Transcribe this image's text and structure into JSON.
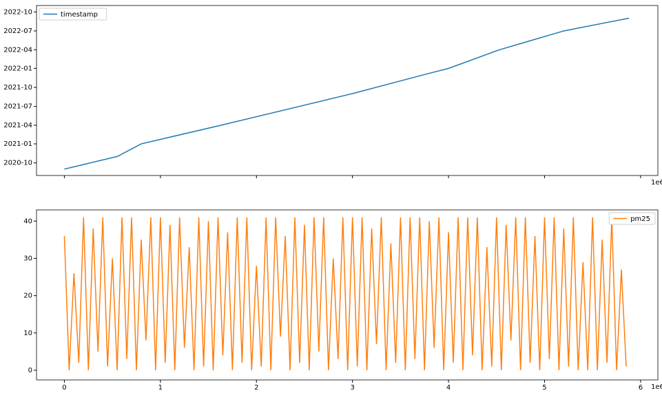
{
  "chart_data": [
    {
      "type": "line",
      "offset_label": "1e6",
      "legend": "upper left",
      "show_xtick_labels": false,
      "x": [
        0,
        0.55,
        0.8,
        1.63,
        3.0,
        3.74,
        4.0,
        4.53,
        5.2,
        5.88
      ],
      "series": [
        {
          "name": "timestamp",
          "color": "#1f77b4",
          "values": [
            "2020-09",
            "2020-11",
            "2021-01",
            "2021-04",
            "2021-09",
            "2021-12",
            "2022-01",
            "2022-04",
            "2022-07",
            "2022-09"
          ]
        }
      ],
      "xlim": [
        -0.29,
        6.18
      ],
      "xticks": [
        0,
        1,
        2,
        3,
        4,
        5,
        6
      ],
      "ylim": [
        "2020-08",
        "2022-11"
      ],
      "yticks": [
        "2020-10",
        "2021-01",
        "2021-04",
        "2021-07",
        "2021-10",
        "2022-01",
        "2022-04",
        "2022-07",
        "2022-10"
      ]
    },
    {
      "type": "line",
      "offset_label": "1e6",
      "legend": "upper right",
      "show_xtick_labels": true,
      "x": [
        0,
        0.05,
        0.1,
        0.15,
        0.2,
        0.25,
        0.3,
        0.35,
        0.4,
        0.45,
        0.5,
        0.55,
        0.6,
        0.65,
        0.7,
        0.75,
        0.8,
        0.85,
        0.9,
        0.95,
        1,
        1.05,
        1.1,
        1.15,
        1.2,
        1.25,
        1.3,
        1.35,
        1.4,
        1.45,
        1.5,
        1.55,
        1.6,
        1.65,
        1.7,
        1.75,
        1.8,
        1.85,
        1.9,
        1.95,
        2,
        2.05,
        2.1,
        2.15,
        2.2,
        2.25,
        2.3,
        2.35,
        2.4,
        2.45,
        2.5,
        2.55,
        2.6,
        2.65,
        2.7,
        2.75,
        2.8,
        2.85,
        2.9,
        2.95,
        3,
        3.05,
        3.1,
        3.15,
        3.2,
        3.25,
        3.3,
        3.35,
        3.4,
        3.45,
        3.5,
        3.55,
        3.6,
        3.65,
        3.7,
        3.75,
        3.8,
        3.85,
        3.9,
        3.95,
        4,
        4.05,
        4.1,
        4.15,
        4.2,
        4.25,
        4.3,
        4.35,
        4.4,
        4.45,
        4.5,
        4.55,
        4.6,
        4.65,
        4.7,
        4.75,
        4.8,
        4.85,
        4.9,
        4.95,
        5,
        5.05,
        5.1,
        5.15,
        5.2,
        5.25,
        5.3,
        5.35,
        5.4,
        5.45,
        5.5,
        5.55,
        5.6,
        5.65,
        5.7,
        5.75,
        5.8,
        5.85
      ],
      "series": [
        {
          "name": "pm25",
          "color": "#ff7f0e",
          "values": [
            36,
            0,
            26,
            2,
            41,
            0,
            38,
            5,
            41,
            1,
            30,
            0,
            41,
            3,
            41,
            0,
            35,
            8,
            41,
            0,
            41,
            2,
            39,
            0,
            41,
            6,
            33,
            0,
            41,
            1,
            40,
            0,
            41,
            4,
            37,
            0,
            41,
            2,
            41,
            0,
            28,
            1,
            41,
            0,
            41,
            9,
            36,
            0,
            41,
            2,
            39,
            0,
            41,
            5,
            41,
            0,
            30,
            3,
            41,
            0,
            41,
            1,
            41,
            0,
            38,
            7,
            41,
            0,
            34,
            2,
            41,
            0,
            41,
            3,
            41,
            0,
            40,
            6,
            41,
            0,
            37,
            2,
            41,
            0,
            41,
            4,
            41,
            0,
            33,
            1,
            41,
            0,
            39,
            8,
            41,
            0,
            41,
            2,
            36,
            0,
            41,
            3,
            41,
            0,
            38,
            1,
            41,
            0,
            29,
            0,
            41,
            0,
            35,
            2,
            41,
            0,
            27,
            1
          ]
        }
      ],
      "xlim": [
        -0.29,
        6.18
      ],
      "xticks": [
        0,
        1,
        2,
        3,
        4,
        5,
        6
      ],
      "ylim": [
        -2.6,
        43
      ],
      "yticks": [
        0,
        10,
        20,
        30,
        40
      ]
    }
  ]
}
